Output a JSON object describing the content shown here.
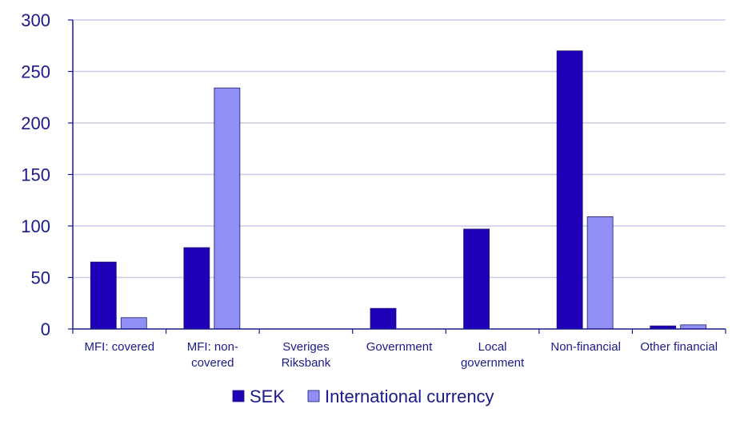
{
  "chart_data": {
    "type": "bar",
    "categories": [
      [
        "MFI: covered"
      ],
      [
        "MFI: non-",
        "covered"
      ],
      [
        "Sveriges",
        "Riksbank"
      ],
      [
        "Government"
      ],
      [
        "Local",
        "government"
      ],
      [
        "Non-financial"
      ],
      [
        "Other financial"
      ]
    ],
    "series": [
      {
        "name": "SEK",
        "color": "#1f00b8",
        "values": [
          65,
          79,
          0,
          20,
          97,
          270,
          3
        ]
      },
      {
        "name": "International currency",
        "color": "#8f8ff5",
        "values": [
          11,
          234,
          0,
          0,
          0,
          109,
          4
        ]
      }
    ],
    "ylim": [
      0,
      300
    ],
    "yticks": [
      0,
      50,
      100,
      150,
      200,
      250,
      300
    ],
    "grid": true,
    "legend": "bottom-center"
  }
}
